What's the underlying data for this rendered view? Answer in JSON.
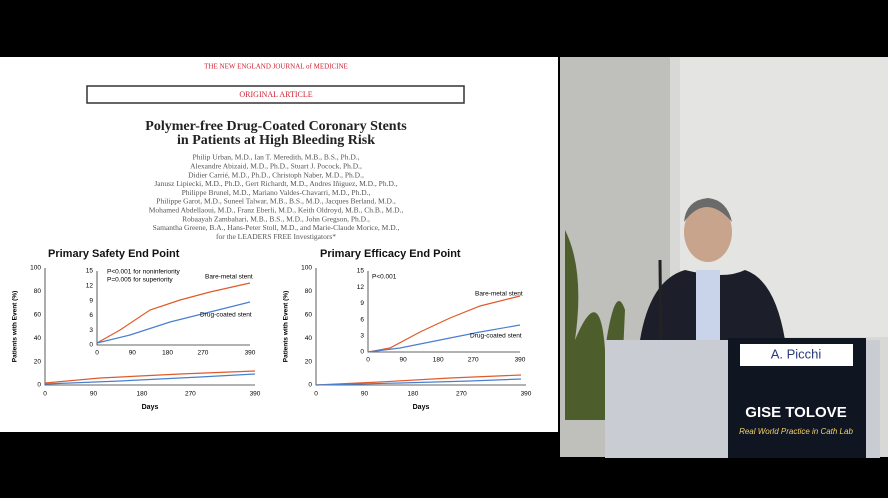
{
  "header": {
    "journal": "THE NEW ENGLAND JOURNAL of MEDICINE",
    "article_type": "ORIGINAL ARTICLE"
  },
  "title": [
    "Polymer-free Drug-Coated Coronary Stents",
    "in Patients at High Bleeding Risk"
  ],
  "authors": [
    "Philip Urban, M.D., Ian T. Meredith, M.B., B.S., Ph.D.,",
    "Alexandre Abizaid, M.D., Ph.D., Stuart J. Pocock, Ph.D.,",
    "Didier Carrié, M.D., Ph.D., Christoph Naber, M.D., Ph.D.,",
    "Janusz Lipiecki, M.D., Ph.D., Gert Richardt, M.D., Andres Iñiguez, M.D., Ph.D.,",
    "Philippe Brunel, M.D., Mariano Valdes-Chavarri, M.D., Ph.D.,",
    "Philippe Garot, M.D., Suneel Talwar, M.B., B.S., M.D., Jacques Berland, M.D.,",
    "Mohamed Abdellaoui, M.D., Franz Eberli, M.D., Keith Oldroyd, M.B., Ch.B., M.D.,",
    "Robaayah Zambahari, M.B., B.S., M.D., John Gregson, Ph.D.,",
    "Samantha Greene, B.A., Hans-Peter Stoll, M.D., and Marie-Claude Morice, M.D.,",
    "for the LEADERS FREE Investigators*"
  ],
  "panels": [
    {
      "title": "Primary Safety End Point",
      "y_label": "Patients with Event (%)",
      "x_label": "Days",
      "yticks": [
        "0",
        "20",
        "40",
        "60",
        "80",
        "100"
      ],
      "xticks": [
        "0",
        "90",
        "180",
        "270",
        "390"
      ],
      "inset_yticks": [
        "0",
        "3",
        "6",
        "9",
        "12",
        "15"
      ],
      "inset_xticks": [
        "0",
        "90",
        "180",
        "270",
        "390"
      ],
      "annotations": [
        "P<0.001 for noninferiority",
        "P=0.005 for superiority"
      ],
      "series_labels": [
        "Bare-metal stent",
        "Drug-coated stent"
      ]
    },
    {
      "title": "Primary Efficacy End Point",
      "y_label": "Patients with Event (%)",
      "x_label": "Days",
      "yticks": [
        "0",
        "20",
        "40",
        "60",
        "80",
        "100"
      ],
      "xticks": [
        "0",
        "90",
        "180",
        "270",
        "390"
      ],
      "inset_yticks": [
        "0",
        "3",
        "6",
        "9",
        "12",
        "15"
      ],
      "inset_xticks": [
        "0",
        "90",
        "180",
        "270",
        "390"
      ],
      "annotations": [
        "P<0.001"
      ],
      "series_labels": [
        "Bare-metal stent",
        "Drug-coated stent"
      ]
    }
  ],
  "speaker": {
    "name": "A. Picchi"
  },
  "podium": {
    "logo": "GISE TOLOVE",
    "tagline": "Real World Practice in Cath Lab"
  }
}
